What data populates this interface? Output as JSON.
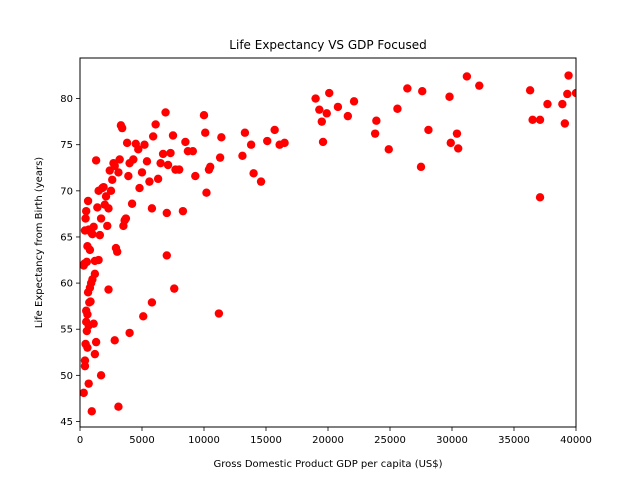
{
  "chart_data": {
    "type": "scatter",
    "title": "Life Expectancy VS GDP Focused",
    "xlabel": "Gross Domestic Product GDP per capita (US$)",
    "ylabel": "Life Expectancy from Birth (years)",
    "xlim": [
      0,
      40000
    ],
    "ylim": [
      44.4,
      84.4
    ],
    "xticks": [
      0,
      5000,
      10000,
      15000,
      20000,
      25000,
      30000,
      35000,
      40000
    ],
    "yticks": [
      45,
      50,
      55,
      60,
      65,
      70,
      75,
      80
    ],
    "grid": false,
    "marker_color": "#ff0000",
    "points": [
      [
        300,
        48.1
      ],
      [
        400,
        51.0
      ],
      [
        400,
        51.6
      ],
      [
        450,
        53.4
      ],
      [
        500,
        55.8
      ],
      [
        500,
        57.0
      ],
      [
        550,
        54.8
      ],
      [
        600,
        53.0
      ],
      [
        600,
        56.6
      ],
      [
        650,
        59.0
      ],
      [
        700,
        49.1
      ],
      [
        700,
        55.4
      ],
      [
        750,
        57.9
      ],
      [
        800,
        59.5
      ],
      [
        850,
        58.0
      ],
      [
        900,
        60.0
      ],
      [
        950,
        46.1
      ],
      [
        1000,
        60.4
      ],
      [
        1100,
        55.6
      ],
      [
        1200,
        61.0
      ],
      [
        1200,
        52.3
      ],
      [
        1300,
        53.6
      ],
      [
        1500,
        62.5
      ],
      [
        1700,
        50.0
      ],
      [
        2300,
        59.3
      ],
      [
        2800,
        53.8
      ],
      [
        3100,
        46.6
      ],
      [
        4000,
        54.6
      ],
      [
        5100,
        56.4
      ],
      [
        5800,
        57.9
      ],
      [
        7000,
        63.0
      ],
      [
        7600,
        59.4
      ],
      [
        11200,
        56.7
      ],
      [
        300,
        61.9
      ],
      [
        350,
        62.1
      ],
      [
        400,
        65.7
      ],
      [
        450,
        67.0
      ],
      [
        500,
        67.8
      ],
      [
        550,
        62.3
      ],
      [
        600,
        64.0
      ],
      [
        650,
        68.9
      ],
      [
        700,
        65.8
      ],
      [
        800,
        63.6
      ],
      [
        900,
        65.5
      ],
      [
        1000,
        65.3
      ],
      [
        1100,
        66.1
      ],
      [
        1200,
        62.4
      ],
      [
        1300,
        73.3
      ],
      [
        1400,
        68.2
      ],
      [
        1500,
        70.0
      ],
      [
        1600,
        65.2
      ],
      [
        1700,
        67.0
      ],
      [
        1800,
        70.3
      ],
      [
        1900,
        70.4
      ],
      [
        2000,
        68.5
      ],
      [
        2100,
        69.4
      ],
      [
        2200,
        66.2
      ],
      [
        2300,
        68.1
      ],
      [
        2400,
        72.2
      ],
      [
        2500,
        70.0
      ],
      [
        2600,
        71.2
      ],
      [
        2700,
        73.0
      ],
      [
        2800,
        72.7
      ],
      [
        2900,
        63.8
      ],
      [
        3000,
        63.4
      ],
      [
        3100,
        72.0
      ],
      [
        3200,
        73.4
      ],
      [
        3300,
        77.1
      ],
      [
        3400,
        76.8
      ],
      [
        3500,
        66.2
      ],
      [
        3600,
        66.8
      ],
      [
        3700,
        67.0
      ],
      [
        3800,
        75.2
      ],
      [
        3900,
        71.6
      ],
      [
        4000,
        73.0
      ],
      [
        4200,
        68.6
      ],
      [
        4300,
        73.4
      ],
      [
        4500,
        75.1
      ],
      [
        4700,
        74.5
      ],
      [
        4800,
        70.3
      ],
      [
        5000,
        72.0
      ],
      [
        5200,
        75.0
      ],
      [
        5400,
        73.2
      ],
      [
        5600,
        71.0
      ],
      [
        5800,
        68.1
      ],
      [
        5900,
        75.9
      ],
      [
        6100,
        77.2
      ],
      [
        6300,
        71.3
      ],
      [
        6500,
        73.0
      ],
      [
        6700,
        74.0
      ],
      [
        6900,
        78.5
      ],
      [
        7000,
        67.6
      ],
      [
        7100,
        72.8
      ],
      [
        7300,
        74.1
      ],
      [
        7500,
        76.0
      ],
      [
        7700,
        72.3
      ],
      [
        8000,
        72.3
      ],
      [
        8300,
        67.8
      ],
      [
        8500,
        75.3
      ],
      [
        8700,
        74.3
      ],
      [
        9100,
        74.3
      ],
      [
        9300,
        71.6
      ],
      [
        10000,
        78.2
      ],
      [
        10100,
        76.3
      ],
      [
        10200,
        69.8
      ],
      [
        10400,
        72.3
      ],
      [
        10500,
        72.6
      ],
      [
        11300,
        73.6
      ],
      [
        11400,
        75.8
      ],
      [
        13100,
        73.8
      ],
      [
        13300,
        76.3
      ],
      [
        13800,
        75.0
      ],
      [
        14000,
        71.9
      ],
      [
        14600,
        71.0
      ],
      [
        15100,
        75.4
      ],
      [
        15700,
        76.6
      ],
      [
        16100,
        75.0
      ],
      [
        16500,
        75.2
      ],
      [
        19000,
        80.0
      ],
      [
        19300,
        78.8
      ],
      [
        19500,
        77.5
      ],
      [
        19600,
        75.3
      ],
      [
        19900,
        78.4
      ],
      [
        20100,
        80.6
      ],
      [
        20800,
        79.1
      ],
      [
        21600,
        78.1
      ],
      [
        22100,
        79.7
      ],
      [
        23800,
        76.2
      ],
      [
        23900,
        77.6
      ],
      [
        24900,
        74.5
      ],
      [
        25600,
        78.9
      ],
      [
        26400,
        81.1
      ],
      [
        27500,
        72.6
      ],
      [
        27600,
        80.8
      ],
      [
        28100,
        76.6
      ],
      [
        29800,
        80.2
      ],
      [
        29900,
        75.2
      ],
      [
        30400,
        76.2
      ],
      [
        30500,
        74.6
      ],
      [
        31200,
        82.4
      ],
      [
        32200,
        81.4
      ],
      [
        36300,
        80.9
      ],
      [
        36500,
        77.7
      ],
      [
        37100,
        69.3
      ],
      [
        37100,
        77.7
      ],
      [
        37700,
        79.4
      ],
      [
        38900,
        79.4
      ],
      [
        39100,
        77.3
      ],
      [
        39300,
        80.5
      ],
      [
        39400,
        82.5
      ],
      [
        40000,
        80.6
      ]
    ]
  }
}
